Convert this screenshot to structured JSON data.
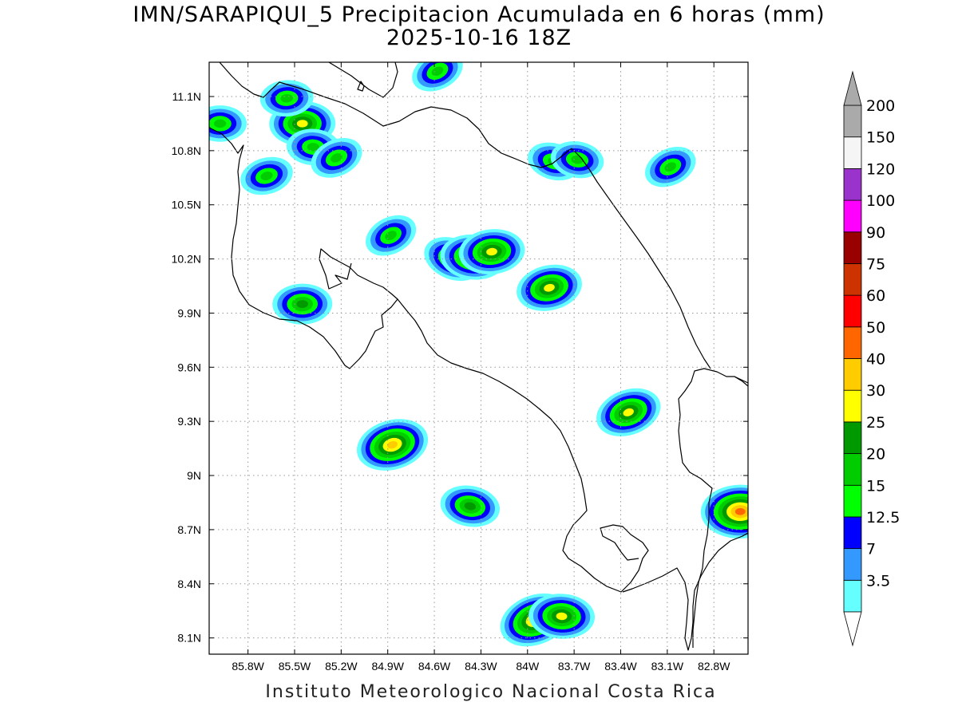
{
  "header": {
    "title_line1": "IMN/SARAPIQUI_5 Precipitacion Acumulada en 6 horas (mm)",
    "title_line2": "2025-10-16 18Z"
  },
  "footer": {
    "text": "Instituto Meteorologico Nacional Costa Rica"
  },
  "map": {
    "lon_range": [
      -86.05,
      -82.58
    ],
    "lat_range": [
      8.01,
      11.29
    ],
    "lon_ticks": [
      {
        "value": -85.8,
        "label": "85.8W"
      },
      {
        "value": -85.5,
        "label": "85.5W"
      },
      {
        "value": -85.2,
        "label": "85.2W"
      },
      {
        "value": -84.9,
        "label": "84.9W"
      },
      {
        "value": -84.6,
        "label": "84.6W"
      },
      {
        "value": -84.3,
        "label": "84.3W"
      },
      {
        "value": -84.0,
        "label": "84W"
      },
      {
        "value": -83.7,
        "label": "83.7W"
      },
      {
        "value": -83.4,
        "label": "83.4W"
      },
      {
        "value": -83.1,
        "label": "83.1W"
      },
      {
        "value": -82.8,
        "label": "82.8W"
      }
    ],
    "lat_ticks": [
      {
        "value": 11.1,
        "label": "11.1N"
      },
      {
        "value": 10.8,
        "label": "10.8N"
      },
      {
        "value": 10.5,
        "label": "10.5N"
      },
      {
        "value": 10.2,
        "label": "10.2N"
      },
      {
        "value": 9.9,
        "label": "9.9N"
      },
      {
        "value": 9.6,
        "label": "9.6N"
      },
      {
        "value": 9.3,
        "label": "9.3N"
      },
      {
        "value": 9.0,
        "label": "9N"
      },
      {
        "value": 8.7,
        "label": "8.7N"
      },
      {
        "value": 8.4,
        "label": "8.4N"
      },
      {
        "value": 8.1,
        "label": "8.1N"
      }
    ],
    "grid": true
  },
  "colorbar": {
    "units": "mm",
    "levels": [
      {
        "label": "3.5",
        "color": "#66ffff"
      },
      {
        "label": "7",
        "color": "#3399ff"
      },
      {
        "label": "12.5",
        "color": "#0000ff"
      },
      {
        "label": "15",
        "color": "#00ff00"
      },
      {
        "label": "20",
        "color": "#00cc00"
      },
      {
        "label": "25",
        "color": "#009900"
      },
      {
        "label": "30",
        "color": "#ffff00"
      },
      {
        "label": "40",
        "color": "#ffcc00"
      },
      {
        "label": "50",
        "color": "#ff6600"
      },
      {
        "label": "60",
        "color": "#ff0000"
      },
      {
        "label": "75",
        "color": "#cc3300"
      },
      {
        "label": "90",
        "color": "#990000"
      },
      {
        "label": "100",
        "color": "#ff00ff"
      },
      {
        "label": "120",
        "color": "#9933cc"
      },
      {
        "label": "150",
        "color": "#f5f5f5"
      },
      {
        "label": "200",
        "color": "#aaaaaa"
      }
    ]
  },
  "precipitation_cells": [
    {
      "lon": -85.45,
      "lat": 10.95,
      "max_level": 6
    },
    {
      "lon": -85.38,
      "lat": 10.82,
      "max_level": 4
    },
    {
      "lon": -85.23,
      "lat": 10.76,
      "max_level": 4
    },
    {
      "lon": -85.68,
      "lat": 10.66,
      "max_level": 4
    },
    {
      "lon": -85.55,
      "lat": 11.09,
      "max_level": 4
    },
    {
      "lon": -85.98,
      "lat": 10.95,
      "max_level": 4
    },
    {
      "lon": -84.58,
      "lat": 11.24,
      "max_level": 4
    },
    {
      "lon": -84.48,
      "lat": 10.2,
      "max_level": 5
    },
    {
      "lon": -84.35,
      "lat": 10.21,
      "max_level": 6
    },
    {
      "lon": -84.23,
      "lat": 10.24,
      "max_level": 6
    },
    {
      "lon": -83.86,
      "lat": 10.04,
      "max_level": 6
    },
    {
      "lon": -83.83,
      "lat": 10.74,
      "max_level": 4
    },
    {
      "lon": -83.68,
      "lat": 10.75,
      "max_level": 4
    },
    {
      "lon": -83.08,
      "lat": 10.71,
      "max_level": 4
    },
    {
      "lon": -85.45,
      "lat": 9.95,
      "max_level": 5
    },
    {
      "lon": -84.87,
      "lat": 9.17,
      "max_level": 7
    },
    {
      "lon": -84.37,
      "lat": 8.83,
      "max_level": 5
    },
    {
      "lon": -83.95,
      "lat": 8.2,
      "max_level": 7
    },
    {
      "lon": -83.78,
      "lat": 8.22,
      "max_level": 6
    },
    {
      "lon": -82.63,
      "lat": 8.8,
      "max_level": 8
    },
    {
      "lon": -83.35,
      "lat": 9.35,
      "max_level": 6
    },
    {
      "lon": -84.88,
      "lat": 10.33,
      "max_level": 4
    }
  ]
}
